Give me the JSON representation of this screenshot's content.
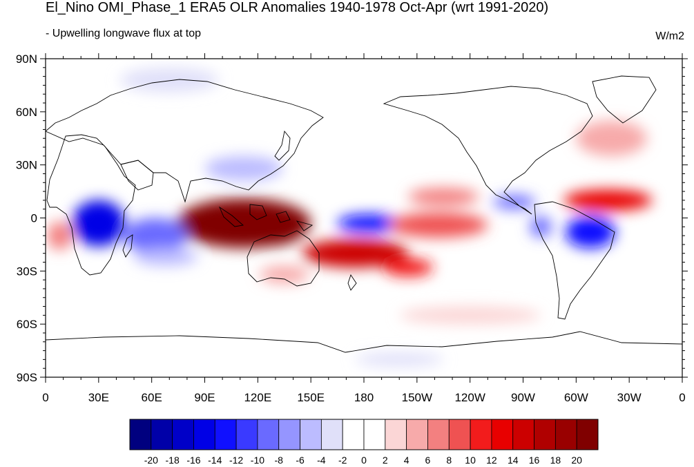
{
  "header": {
    "title": "El_Nino OMI_Phase_1 ERA5 OLR Anomalies 1940-1978 Oct-Apr (wrt 1991-2020)",
    "subtitle": "- Upwelling longwave flux at top",
    "units": "W/m2"
  },
  "map": {
    "projection": "cylindrical equidistant",
    "lon_range": [
      0,
      360
    ],
    "lat_range": [
      -90,
      90
    ],
    "lat_ticks": [
      "90N",
      "60N",
      "30N",
      "0",
      "30S",
      "60S",
      "90S"
    ],
    "lon_ticks": [
      "0",
      "30E",
      "60E",
      "90E",
      "120E",
      "150E",
      "180",
      "150W",
      "120W",
      "90W",
      "60W",
      "30W",
      "0"
    ]
  },
  "colorbar": {
    "colors": [
      "#00007f",
      "#0000a8",
      "#0000c8",
      "#0000e6",
      "#1010ff",
      "#3a3aff",
      "#6a6aff",
      "#9595ff",
      "#bcbcff",
      "#e0e0f9",
      "#ffffff",
      "#ffffff",
      "#fbd6d6",
      "#f7aaaa",
      "#f38080",
      "#ef5252",
      "#f21c1c",
      "#e80000",
      "#cc0000",
      "#b00000",
      "#990000",
      "#800000"
    ],
    "labels": [
      "-20",
      "-18",
      "-16",
      "-14",
      "-12",
      "-10",
      "-8",
      "-6",
      "-4",
      "-2",
      "0",
      "2",
      "4",
      "6",
      "8",
      "10",
      "12",
      "14",
      "16",
      "18",
      "20"
    ]
  },
  "anomalies": [
    {
      "name": "maritime-continent-positive",
      "lon": 112,
      "lat": -3,
      "rx": 38,
      "ry": 14,
      "value": 20
    },
    {
      "name": "maritime-core",
      "lon": 125,
      "lat": -8,
      "rx": 20,
      "ry": 8,
      "value": 24
    },
    {
      "name": "south-pacific-convergence-positive",
      "lon": 175,
      "lat": -20,
      "rx": 30,
      "ry": 8,
      "value": 14
    },
    {
      "name": "spcz-tail",
      "lon": 205,
      "lat": -28,
      "rx": 14,
      "ry": 5,
      "value": 10
    },
    {
      "name": "central-pacific-negative",
      "lon": 183,
      "lat": -3,
      "rx": 18,
      "ry": 5,
      "value": -14
    },
    {
      "name": "east-pacific-positive",
      "lon": 222,
      "lat": -4,
      "rx": 28,
      "ry": 7,
      "value": 9
    },
    {
      "name": "north-pacific-positive",
      "lon": 225,
      "lat": 12,
      "rx": 20,
      "ry": 5,
      "value": 6
    },
    {
      "name": "central-america-negative",
      "lon": 265,
      "lat": 9,
      "rx": 12,
      "ry": 4,
      "value": -10
    },
    {
      "name": "atlantic-itcz-positive",
      "lon": 318,
      "lat": 10,
      "rx": 25,
      "ry": 6,
      "value": 12
    },
    {
      "name": "amazon-negative",
      "lon": 308,
      "lat": -8,
      "rx": 14,
      "ry": 9,
      "value": -14
    },
    {
      "name": "south-america-negative",
      "lon": 280,
      "lat": -5,
      "rx": 6,
      "ry": 6,
      "value": -10
    },
    {
      "name": "africa-negative",
      "lon": 30,
      "lat": -3,
      "rx": 15,
      "ry": 13,
      "value": -16
    },
    {
      "name": "indian-ocean-negative",
      "lon": 62,
      "lat": -10,
      "rx": 18,
      "ry": 10,
      "value": -10
    },
    {
      "name": "indian-ocean-south-negative",
      "lon": 68,
      "lat": -22,
      "rx": 18,
      "ry": 5,
      "value": -6
    },
    {
      "name": "northwest-pacific-negative",
      "lon": 112,
      "lat": 28,
      "rx": 22,
      "ry": 7,
      "value": -6
    },
    {
      "name": "siberia-negative",
      "lon": 70,
      "lat": 78,
      "rx": 28,
      "ry": 7,
      "value": -4
    },
    {
      "name": "west-africa-positive",
      "lon": 8,
      "lat": -10,
      "rx": 7,
      "ry": 8,
      "value": 6
    },
    {
      "name": "south-indian-positive",
      "lon": 135,
      "lat": -32,
      "rx": 14,
      "ry": 5,
      "value": 4
    },
    {
      "name": "north-atlantic-positive",
      "lon": 320,
      "lat": 45,
      "rx": 20,
      "ry": 10,
      "value": 4
    },
    {
      "name": "southern-ocean-positive",
      "lon": 240,
      "lat": -55,
      "rx": 40,
      "ry": 5,
      "value": 3
    },
    {
      "name": "antarctic-negative",
      "lon": 200,
      "lat": -80,
      "rx": 25,
      "ry": 4,
      "value": -3
    }
  ]
}
